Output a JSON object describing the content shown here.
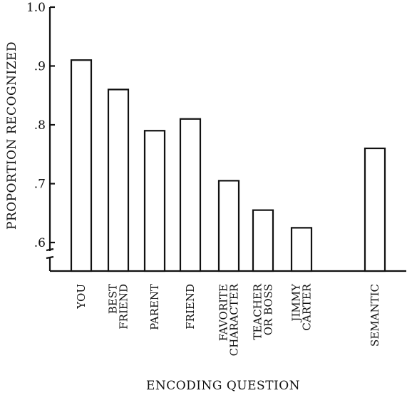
{
  "chart_data": {
    "type": "bar",
    "title": "",
    "xlabel": "ENCODING QUESTION",
    "ylabel": "PROPORTION RECOGNIZED",
    "ylim": [
      0.55,
      1.0
    ],
    "yticks": [
      ".6",
      ".7",
      ".8",
      ".9",
      "1.0"
    ],
    "ytick_values": [
      0.6,
      0.7,
      0.8,
      0.9,
      1.0
    ],
    "axis_break": true,
    "grid": false,
    "categories": [
      [
        "YOU"
      ],
      [
        "BEST",
        "FRIEND"
      ],
      [
        "PARENT"
      ],
      [
        "FRIEND"
      ],
      [
        "FAVORITE",
        "CHARACTER"
      ],
      [
        "TEACHER",
        "OR BOSS"
      ],
      [
        "JIMMY",
        "CARTER"
      ],
      [
        "SEMANTIC"
      ]
    ],
    "values": [
      0.91,
      0.86,
      0.79,
      0.81,
      0.705,
      0.655,
      0.625,
      0.76
    ]
  }
}
